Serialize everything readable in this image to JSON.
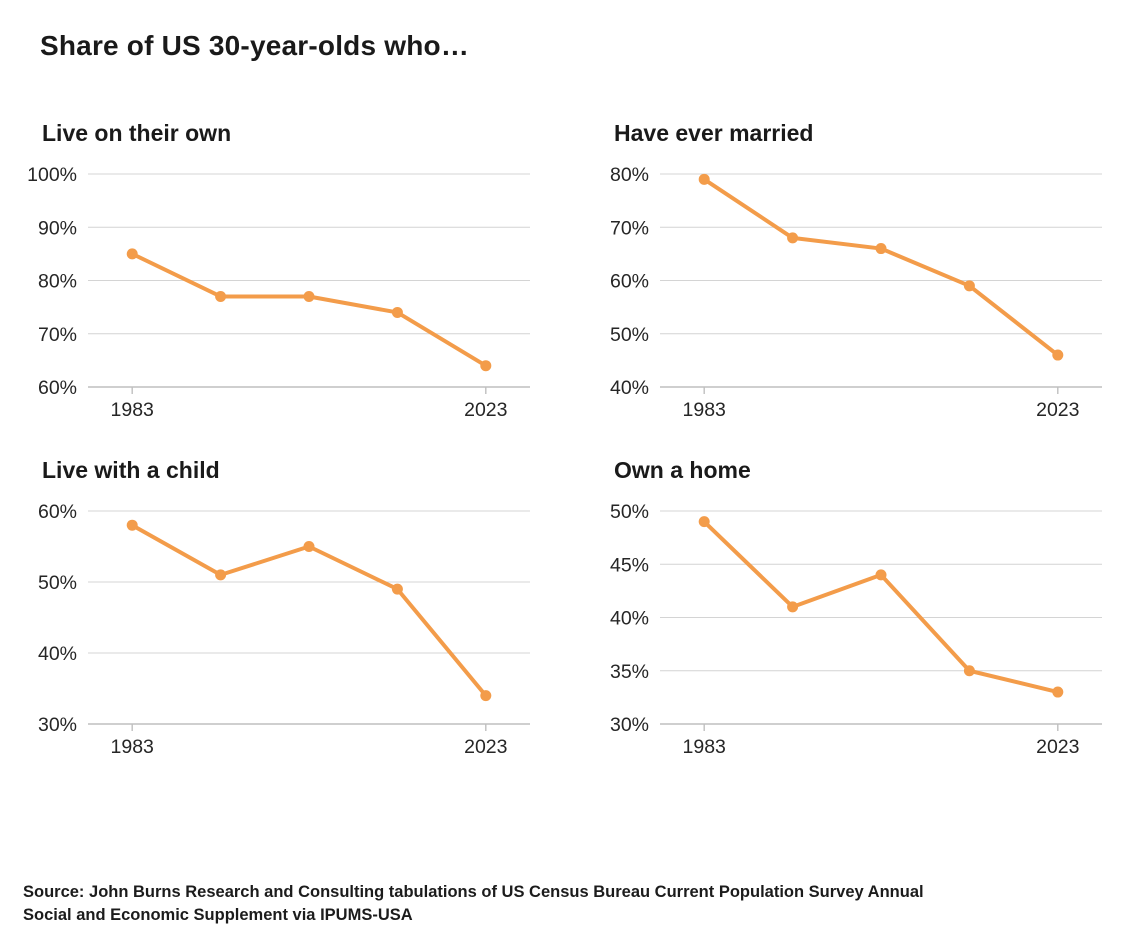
{
  "page": {
    "title": "Share of US 30-year-olds who…",
    "source_line1": "Source: John Burns Research and Consulting tabulations of US Census Bureau Current Population Survey Annual",
    "source_line2": "Social and Economic Supplement via IPUMS-USA"
  },
  "colors": {
    "line": "#F39C4A",
    "marker": "#F39C4A",
    "grid": "#D4D4D4",
    "axis": "#BFBFBF",
    "tick_text": "#262626"
  },
  "chart_data": [
    {
      "type": "line",
      "title": "Live on their own",
      "x": [
        1983,
        1993,
        2003,
        2013,
        2023
      ],
      "x_tick_labels": [
        "1983",
        "2023"
      ],
      "values": [
        85,
        77,
        77,
        74,
        64
      ],
      "ylim": [
        60,
        100
      ],
      "ytick_step": 10,
      "ytick_format": "percent",
      "grid": true,
      "legend": "none"
    },
    {
      "type": "line",
      "title": "Have ever married",
      "x": [
        1983,
        1993,
        2003,
        2013,
        2023
      ],
      "x_tick_labels": [
        "1983",
        "2023"
      ],
      "values": [
        79,
        68,
        66,
        59,
        46
      ],
      "ylim": [
        40,
        80
      ],
      "ytick_step": 10,
      "ytick_format": "percent",
      "grid": true,
      "legend": "none"
    },
    {
      "type": "line",
      "title": "Live with a child",
      "x": [
        1983,
        1993,
        2003,
        2013,
        2023
      ],
      "x_tick_labels": [
        "1983",
        "2023"
      ],
      "values": [
        58,
        51,
        55,
        49,
        34
      ],
      "ylim": [
        30,
        60
      ],
      "ytick_step": 10,
      "ytick_format": "percent",
      "grid": true,
      "legend": "none"
    },
    {
      "type": "line",
      "title": "Own a home",
      "x": [
        1983,
        1993,
        2003,
        2013,
        2023
      ],
      "x_tick_labels": [
        "1983",
        "2023"
      ],
      "values": [
        49,
        41,
        44,
        35,
        33
      ],
      "ylim": [
        30,
        50
      ],
      "ytick_step": 5,
      "ytick_format": "percent",
      "grid": true,
      "legend": "none"
    }
  ]
}
